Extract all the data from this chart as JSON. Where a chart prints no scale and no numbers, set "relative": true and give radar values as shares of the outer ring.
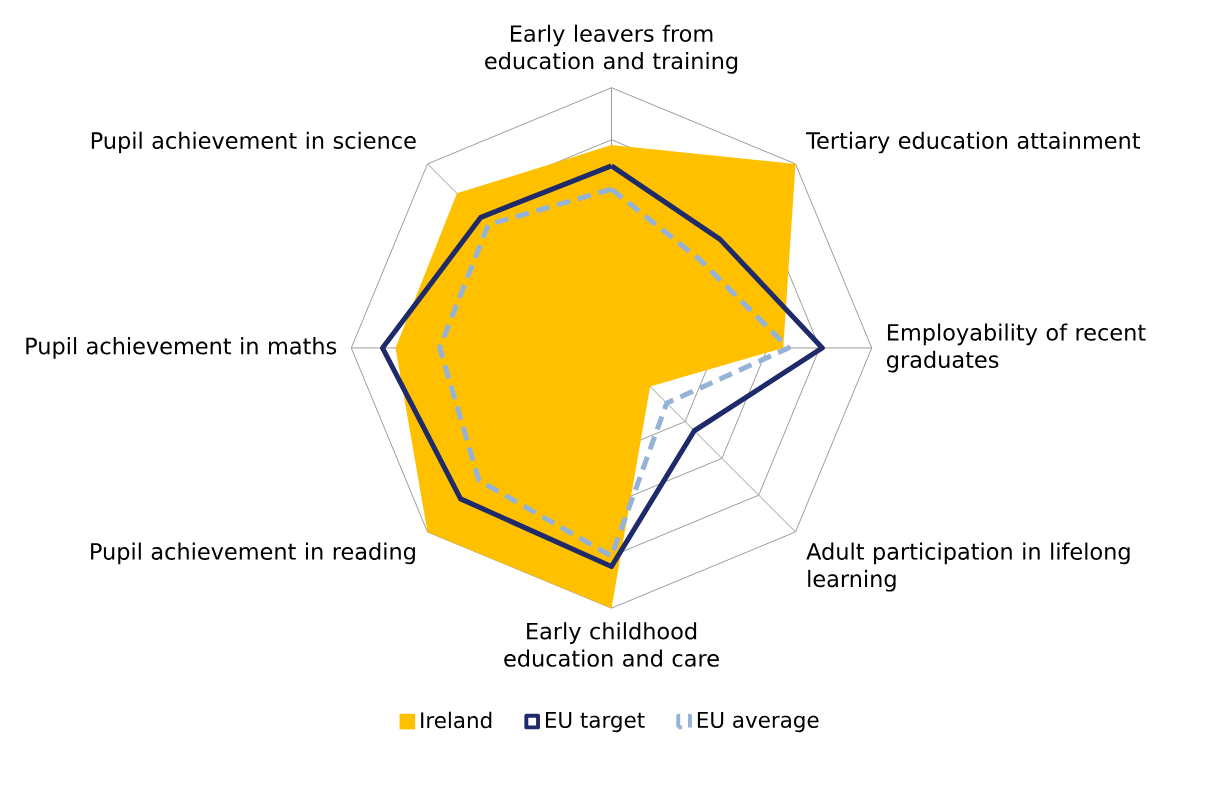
{
  "chart_data": {
    "type": "radar",
    "relative": true,
    "grid": true,
    "legend": "bottom",
    "categories": [
      "Early leavers from education and training",
      "Tertiary education attainment",
      "Employability of recent graduates",
      "Adult participation in lifelong learning",
      "Early childhood education and care",
      "Pupil achievement in reading",
      "Pupil achievement in maths",
      "Pupil achievement in science"
    ],
    "series": [
      {
        "name": "Ireland",
        "type": "area",
        "color": "#ffc000",
        "values": [
          0.78,
          1.0,
          0.66,
          0.21,
          1.0,
          1.0,
          0.83,
          0.84
        ]
      },
      {
        "name": "EU target",
        "color": "#1f2a6b",
        "line_style": "solid",
        "values": [
          0.7,
          0.59,
          0.81,
          0.45,
          0.84,
          0.82,
          0.88,
          0.71
        ]
      },
      {
        "name": "EU average",
        "color": "#95b3d7",
        "line_style": "dashed",
        "values": [
          0.61,
          0.48,
          0.68,
          0.3,
          0.8,
          0.72,
          0.66,
          0.67
        ]
      }
    ]
  }
}
